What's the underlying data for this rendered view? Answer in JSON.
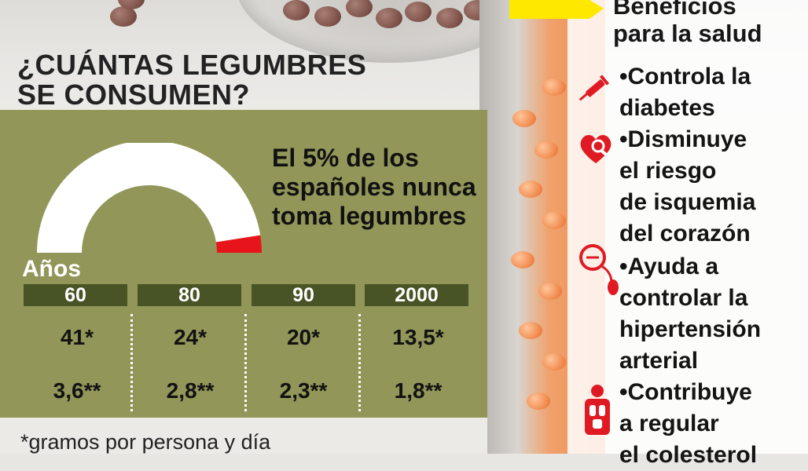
{
  "headline": {
    "line1": "¿CUÁNTAS LEGUMBRES",
    "line2": "SE CONSUMEN?"
  },
  "gauge": {
    "percent_never": 5,
    "fill_color": "#e8141b",
    "arc_color": "#ffffff"
  },
  "note": "El 5% de los españoles nunca toma legumbres",
  "years_label": "Años",
  "decades": [
    {
      "year": "60",
      "grams": "41*",
      "kg": "3,6**"
    },
    {
      "year": "80",
      "grams": "24*",
      "kg": "2,8**"
    },
    {
      "year": "90",
      "grams": "20*",
      "kg": "2,3**"
    },
    {
      "year": "2000",
      "grams": "13,5*",
      "kg": "1,8**"
    }
  ],
  "footnote": "*gramos por persona y día",
  "benefits": {
    "title_line1": "Beneficios",
    "title_line2": "para la salud",
    "items": [
      {
        "icon": "syringe-icon",
        "lines": [
          "•Controla la",
          "diabetes"
        ]
      },
      {
        "icon": "heart-magnifier-icon",
        "lines": [
          "•Disminuye",
          "el riesgo",
          "de isquemia",
          "del corazón"
        ]
      },
      {
        "icon": "blood-pressure-icon",
        "lines": [
          "•Ayuda a",
          "controlar la",
          "hipertensión",
          "arterial"
        ]
      },
      {
        "icon": "human-body-icon",
        "lines": [
          "•Contribuye",
          "a regular",
          "el colesterol"
        ]
      }
    ]
  },
  "colors": {
    "olive": "#8f9352",
    "year_tab": "#485326",
    "accent_red": "#e8141b",
    "arrow_yellow": "#ffe800"
  }
}
